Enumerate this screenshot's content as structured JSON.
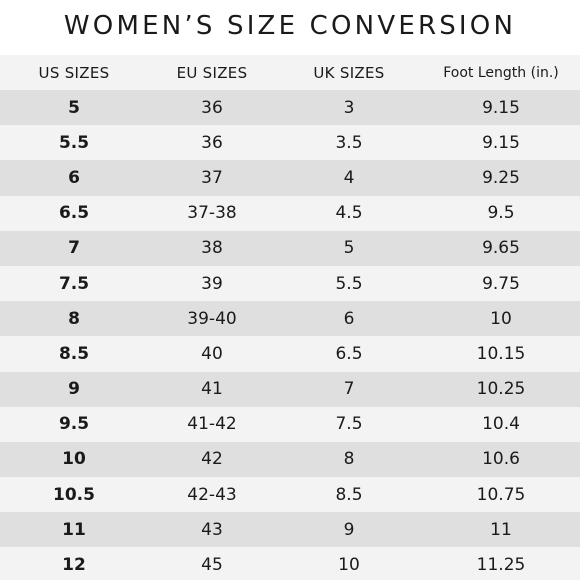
{
  "title": "WOMEN’S SIZE CONVERSION",
  "headers": [
    "US SIZES",
    "EU SIZES",
    "UK SIZES",
    "Foot Length (in.)"
  ],
  "rows": [
    {
      "us": "5",
      "eu": "36",
      "uk": "3",
      "foot": "9.15"
    },
    {
      "us": "5.5",
      "eu": "36",
      "uk": "3.5",
      "foot": "9.15"
    },
    {
      "us": "6",
      "eu": "37",
      "uk": "4",
      "foot": "9.25"
    },
    {
      "us": "6.5",
      "eu": "37-38",
      "uk": "4.5",
      "foot": "9.5"
    },
    {
      "us": "7",
      "eu": "38",
      "uk": "5",
      "foot": "9.65"
    },
    {
      "us": "7.5",
      "eu": "39",
      "uk": "5.5",
      "foot": "9.75"
    },
    {
      "us": "8",
      "eu": "39-40",
      "uk": "6",
      "foot": "10"
    },
    {
      "us": "8.5",
      "eu": "40",
      "uk": "6.5",
      "foot": "10.15"
    },
    {
      "us": "9",
      "eu": "41",
      "uk": "7",
      "foot": "10.25"
    },
    {
      "us": "9.5",
      "eu": "41-42",
      "uk": "7.5",
      "foot": "10.4"
    },
    {
      "us": "10",
      "eu": "42",
      "uk": "8",
      "foot": "10.6"
    },
    {
      "us": "10.5",
      "eu": "42-43",
      "uk": "8.5",
      "foot": "10.75"
    },
    {
      "us": "11",
      "eu": "43",
      "uk": "9",
      "foot": "11"
    },
    {
      "us": "12",
      "eu": "45",
      "uk": "10",
      "foot": "11.25"
    }
  ],
  "colors": {
    "row_shade": "#dfdfdf",
    "row_light": "#f3f3f3",
    "text": "#1a1a1a"
  }
}
